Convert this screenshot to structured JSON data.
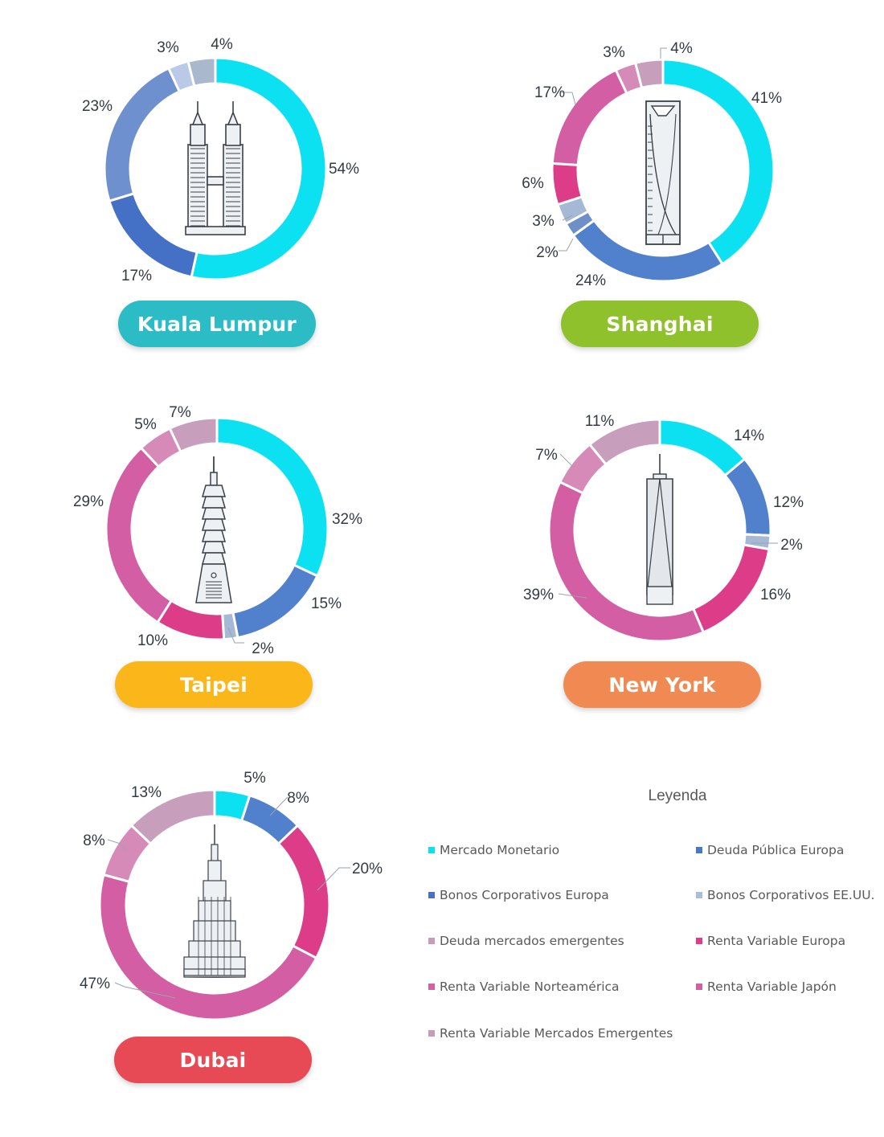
{
  "colors": {
    "Mercado Monetario": "#0ce1f2",
    "Deuda Pública Europa": "#4a78c8",
    "Bonos Corporativos Europa": "#4a6fc6",
    "Bonos Corporativos EE.UU.": "#a8bedb",
    "Deuda mercados emergentes": "#c99bb8",
    "Renta Variable Europa": "#dc3c88",
    "Renta Variable Norteamérica": "#d85ea6",
    "Renta Variable Japón": "#d060a0",
    "Renta Variable Mercados Emergentes": "#c89cb6"
  },
  "legend": {
    "title": "Leyenda",
    "items": [
      {
        "label": "Mercado Monetario",
        "color": "#0ce1f2"
      },
      {
        "label": "Deuda Pública Europa",
        "color": "#4a78c8"
      },
      {
        "label": "Bonos Corporativos Europa",
        "color": "#4a6fc6"
      },
      {
        "label": "Bonos Corporativos EE.UU.",
        "color": "#a8bedb"
      },
      {
        "label": "Deuda mercados emergentes",
        "color": "#c99bb8"
      },
      {
        "label": "Renta Variable Europa",
        "color": "#dc3c88"
      },
      {
        "label": "Renta Variable Norteamérica",
        "color": "#d85ea6"
      },
      {
        "label": "Renta Variable Japón",
        "color": "#d060a0"
      },
      {
        "label": "Renta Variable Mercados Emergentes",
        "color": "#c89cb6"
      }
    ]
  },
  "chart_data": [
    {
      "type": "pie",
      "variant": "donut",
      "title": "Kuala Lumpur",
      "title_color": "#2bbcc6",
      "icon": "petronas-towers-icon",
      "slices": [
        {
          "label": "54%",
          "value": 54,
          "color": "#0ce1f2"
        },
        {
          "label": "17%",
          "value": 17,
          "color": "#4470c6"
        },
        {
          "label": "23%",
          "value": 23,
          "color": "#6f90cf"
        },
        {
          "label": "3%",
          "value": 3,
          "color": "#b9c9e6"
        },
        {
          "label": "4%",
          "value": 4,
          "color": "#a9b8cc"
        }
      ]
    },
    {
      "type": "pie",
      "variant": "donut",
      "title": "Shanghai",
      "title_color": "#8ec12c",
      "icon": "shanghai-tower-icon",
      "slices": [
        {
          "label": "41%",
          "value": 41,
          "color": "#0ce1f2"
        },
        {
          "label": "24%",
          "value": 24,
          "color": "#5181cd"
        },
        {
          "label": "2%",
          "value": 2,
          "color": "#6f8fc8"
        },
        {
          "label": "3%",
          "value": 3,
          "color": "#a5b9d6"
        },
        {
          "label": "6%",
          "value": 6,
          "color": "#dc3c88"
        },
        {
          "label": "17%",
          "value": 17,
          "color": "#d35ea3"
        },
        {
          "label": "3%",
          "value": 3,
          "color": "#d68ab8"
        },
        {
          "label": "4%",
          "value": 4,
          "color": "#c79ebb"
        }
      ]
    },
    {
      "type": "pie",
      "variant": "donut",
      "title": "Taipei",
      "title_color": "#fbb71a",
      "icon": "taipei-101-icon",
      "slices": [
        {
          "label": "32%",
          "value": 32,
          "color": "#0ce1f2"
        },
        {
          "label": "15%",
          "value": 15,
          "color": "#5181cd"
        },
        {
          "label": "2%",
          "value": 2,
          "color": "#a5b9d6"
        },
        {
          "label": "10%",
          "value": 10,
          "color": "#dc3c88"
        },
        {
          "label": "29%",
          "value": 29,
          "color": "#d35ea3"
        },
        {
          "label": "5%",
          "value": 5,
          "color": "#d68ab8"
        },
        {
          "label": "7%",
          "value": 7,
          "color": "#c79ebb"
        }
      ]
    },
    {
      "type": "pie",
      "variant": "donut",
      "title": "New York",
      "title_color": "#f08a52",
      "icon": "one-world-trade-center-icon",
      "slices": [
        {
          "label": "14%",
          "value": 14,
          "color": "#0ce1f2"
        },
        {
          "label": "12%",
          "value": 12,
          "color": "#5181cd"
        },
        {
          "label": "2%",
          "value": 2,
          "color": "#a5b9d6"
        },
        {
          "label": "16%",
          "value": 16,
          "color": "#dc3c88"
        },
        {
          "label": "39%",
          "value": 39,
          "color": "#d35ea3"
        },
        {
          "label": "7%",
          "value": 7,
          "color": "#d68ab8"
        },
        {
          "label": "11%",
          "value": 11,
          "color": "#c79ebb"
        }
      ]
    },
    {
      "type": "pie",
      "variant": "donut",
      "title": "Dubai",
      "title_color": "#e84a55",
      "icon": "burj-khalifa-icon",
      "slices": [
        {
          "label": "5%",
          "value": 5,
          "color": "#0ce1f2"
        },
        {
          "label": "8%",
          "value": 8,
          "color": "#5181cd"
        },
        {
          "label": "20%",
          "value": 20,
          "color": "#dc3c88"
        },
        {
          "label": "47%",
          "value": 47,
          "color": "#d35ea3"
        },
        {
          "label": "8%",
          "value": 8,
          "color": "#d68ab8"
        },
        {
          "label": "13%",
          "value": 13,
          "color": "#c79ebb"
        }
      ]
    }
  ]
}
